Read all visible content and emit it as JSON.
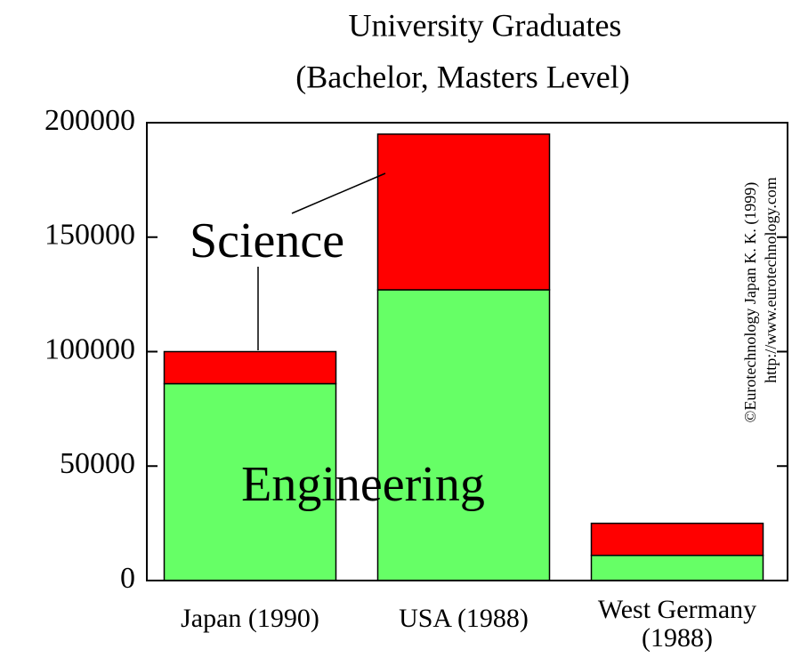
{
  "chart_data": {
    "type": "stacked_bar",
    "title": "University Graduates",
    "subtitle": "(Bachelor, Masters Level)",
    "categories": [
      "Japan (1990)",
      "USA (1988)",
      "West Germany (1988)"
    ],
    "series": [
      {
        "name": "Engineering",
        "color": "#66ff66",
        "values": [
          86000,
          127000,
          11000
        ]
      },
      {
        "name": "Science",
        "color": "#ff0000",
        "values": [
          14000,
          68000,
          14000
        ]
      }
    ],
    "ylim": [
      0,
      200000
    ],
    "yticks": [
      0,
      50000,
      100000,
      150000,
      200000
    ],
    "annotations": [
      "©Eurotechnology Japan K. K. (1999)",
      "http://www.eurotechnology.com"
    ]
  }
}
